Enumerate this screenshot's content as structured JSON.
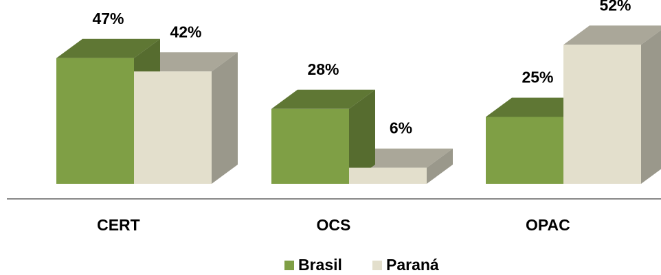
{
  "chart_data": {
    "type": "bar3d",
    "categories": [
      "CERT",
      "OCS",
      "OPAC"
    ],
    "series": [
      {
        "name": "Brasil",
        "color": "#7f9f45",
        "values": [
          47,
          28,
          25
        ],
        "value_labels": [
          "47%",
          "28%",
          "25%"
        ]
      },
      {
        "name": "Paraná",
        "color": "#e3dfcc",
        "values": [
          42,
          6,
          52
        ],
        "value_labels": [
          "42%",
          "6%",
          "52%"
        ]
      }
    ],
    "legend": "bottom"
  }
}
